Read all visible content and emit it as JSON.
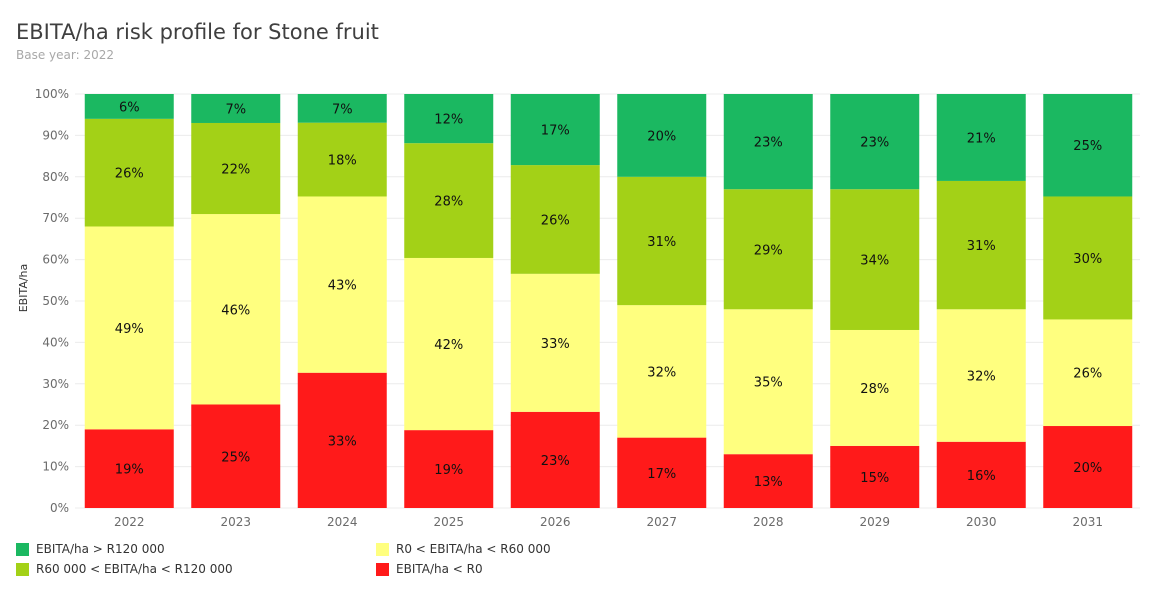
{
  "chart_data": {
    "type": "bar",
    "stacked": true,
    "title": "EBITA/ha risk profile for Stone fruit",
    "subtitle": "Base year: 2022",
    "ylabel": "EBITA/ha",
    "xlabel": "",
    "ylim": [
      0,
      100
    ],
    "yticks": [
      "0%",
      "10%",
      "20%",
      "30%",
      "40%",
      "50%",
      "60%",
      "70%",
      "80%",
      "90%",
      "100%"
    ],
    "grid": true,
    "legend_position": "bottom-left",
    "categories": [
      "2022",
      "2023",
      "2024",
      "2025",
      "2026",
      "2027",
      "2028",
      "2029",
      "2030",
      "2031"
    ],
    "series": [
      {
        "name": "EBITA/ha < R0",
        "color": "#ff1a1a",
        "values": [
          19,
          25,
          33,
          19,
          23,
          17,
          13,
          15,
          16,
          20
        ],
        "labels": [
          "19%",
          "25%",
          "33%",
          "19%",
          "23%",
          "17%",
          "13%",
          "15%",
          "16%",
          "20%"
        ]
      },
      {
        "name": "R0 < EBITA/ha < R60 000",
        "color": "#ffff7f",
        "values": [
          49,
          46,
          43,
          42,
          33,
          32,
          35,
          28,
          32,
          26
        ],
        "labels": [
          "49%",
          "46%",
          "43%",
          "42%",
          "33%",
          "32%",
          "35%",
          "28%",
          "32%",
          "26%"
        ]
      },
      {
        "name": "R60 000 < EBITA/ha < R120 000",
        "color": "#a3d117",
        "values": [
          26,
          22,
          18,
          28,
          26,
          31,
          29,
          34,
          31,
          30
        ],
        "labels": [
          "26%",
          "22%",
          "18%",
          "28%",
          "26%",
          "31%",
          "29%",
          "34%",
          "31%",
          "30%"
        ]
      },
      {
        "name": "EBITA/ha > R120 000",
        "color": "#1bb861",
        "values": [
          6,
          7,
          7,
          12,
          17,
          20,
          23,
          23,
          21,
          25
        ],
        "labels": [
          "6%",
          "7%",
          "7%",
          "12%",
          "17%",
          "20%",
          "23%",
          "23%",
          "21%",
          "25%"
        ]
      }
    ],
    "legend_order": [
      3,
      1,
      2,
      0
    ]
  }
}
